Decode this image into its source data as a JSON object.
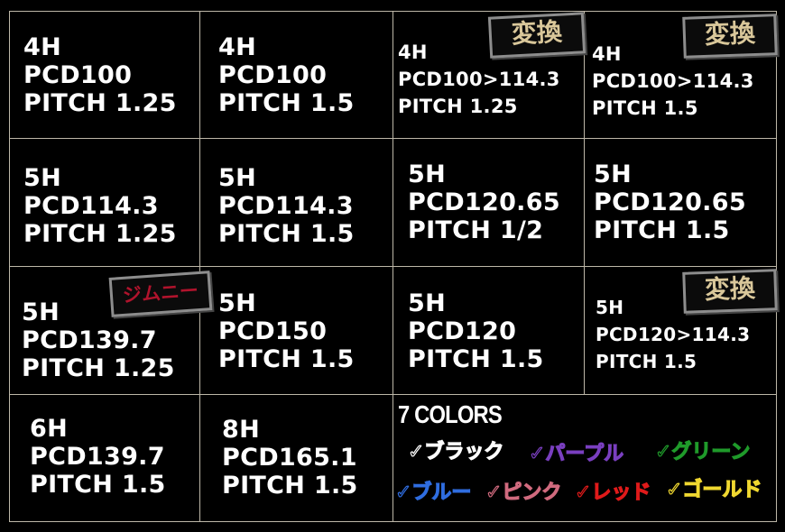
{
  "cells": [
    {
      "lines": [
        "4H",
        "PCD100",
        "PITCH 1.25"
      ]
    },
    {
      "lines": [
        "4H",
        "PCD100",
        "PITCH 1.5"
      ]
    },
    {
      "lines": [
        "4H",
        "PCD100>114.3",
        "PITCH 1.25"
      ],
      "badge": "変換"
    },
    {
      "lines": [
        "4H",
        "PCD100>114.3",
        "PITCH 1.5"
      ],
      "badge": "変換"
    },
    {
      "lines": [
        "5H",
        "PCD114.3",
        "PITCH 1.25"
      ]
    },
    {
      "lines": [
        "5H",
        "PCD114.3",
        "PITCH 1.5"
      ]
    },
    {
      "lines": [
        "5H",
        "PCD120.65",
        "PITCH 1/2"
      ]
    },
    {
      "lines": [
        "5H",
        "PCD120.65",
        "PITCH 1.5"
      ]
    },
    {
      "lines": [
        "5H",
        "PCD139.7",
        "PITCH 1.25"
      ],
      "badge": "ジムニー"
    },
    {
      "lines": [
        "5H",
        "PCD150",
        "PITCH 1.5"
      ]
    },
    {
      "lines": [
        "5H",
        "PCD120",
        "PITCH 1.5"
      ]
    },
    {
      "lines": [
        "5H",
        "PCD120>114.3",
        "PITCH 1.5"
      ],
      "badge": "変換"
    },
    {
      "lines": [
        "6H",
        "PCD139.7",
        "PITCH 1.5"
      ]
    },
    {
      "lines": [
        "8H",
        "PCD165.1",
        "PITCH 1.5"
      ]
    }
  ],
  "colors": {
    "title": "7 COLORS",
    "items": [
      {
        "label": "✓ブラック",
        "color": "#ffffff"
      },
      {
        "label": "✓パープル",
        "color": "#7a3fc0"
      },
      {
        "label": "✓グリーン",
        "color": "#1f9a2a"
      },
      {
        "label": "✓ブルー",
        "color": "#2f6de0"
      },
      {
        "label": "✓ピンク",
        "color": "#d06a7e"
      },
      {
        "label": "✓レッド",
        "color": "#e01a1a"
      },
      {
        "label": "✓ゴールド",
        "color": "#f0d830"
      }
    ]
  }
}
